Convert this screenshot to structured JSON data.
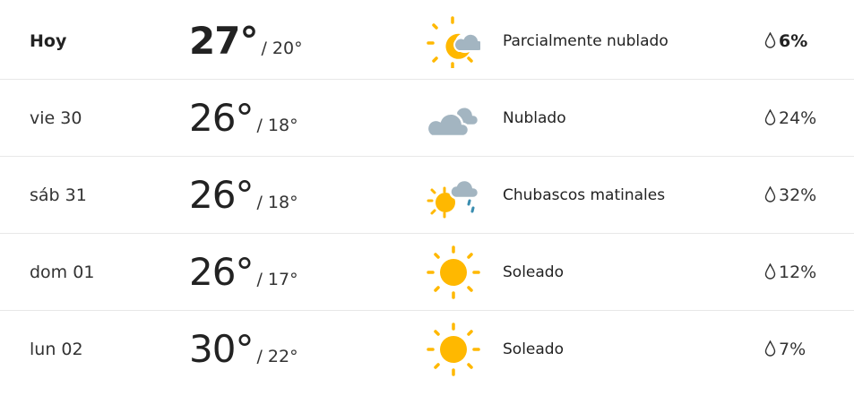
{
  "colors": {
    "sun": "#FFB800",
    "cloud": "#A3B5C1",
    "rain": "#3A8DB0"
  },
  "days": [
    {
      "day": "Hoy",
      "high": "27°",
      "low": "/ 20°",
      "icon": "partly-cloudy-icon",
      "condition": "Parcialmente nublado",
      "precip": "6%"
    },
    {
      "day": "vie 30",
      "high": "26°",
      "low": "/ 18°",
      "icon": "cloudy-icon",
      "condition": "Nublado",
      "precip": "24%"
    },
    {
      "day": "sáb 31",
      "high": "26°",
      "low": "/ 18°",
      "icon": "morning-showers-icon",
      "condition": "Chubascos matinales",
      "precip": "32%"
    },
    {
      "day": "dom 01",
      "high": "26°",
      "low": "/ 17°",
      "icon": "sunny-icon",
      "condition": "Soleado",
      "precip": "12%"
    },
    {
      "day": "lun 02",
      "high": "30°",
      "low": "/ 22°",
      "icon": "sunny-icon",
      "condition": "Soleado",
      "precip": "7%"
    }
  ]
}
